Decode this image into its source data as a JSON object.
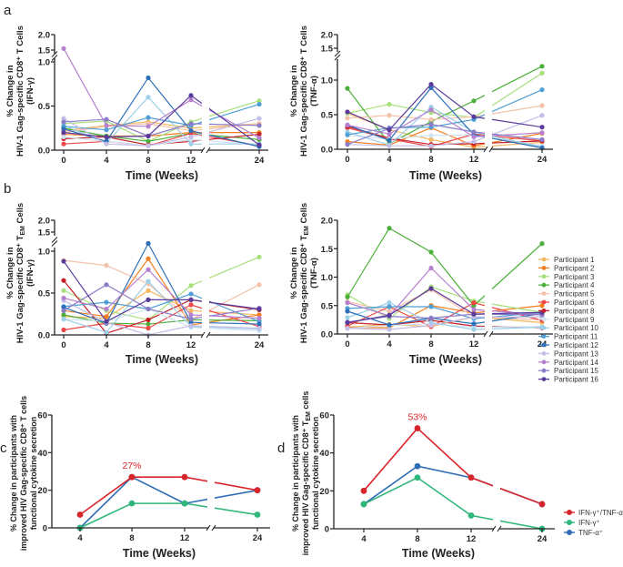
{
  "panel_letters": [
    "a",
    "b",
    "c",
    "d"
  ],
  "legend_participants": [
    {
      "name": "Participant 1",
      "color": "#f5b862"
    },
    {
      "name": "Participant 2",
      "color": "#f57f20"
    },
    {
      "name": "Participant 3",
      "color": "#a8e07c"
    },
    {
      "name": "Participant 4",
      "color": "#4caf3a"
    },
    {
      "name": "Participant 5",
      "color": "#f4c2aa"
    },
    {
      "name": "Participant 6",
      "color": "#ee4545"
    },
    {
      "name": "Participant 8",
      "color": "#c41e28"
    },
    {
      "name": "Participant 9",
      "color": "#cfe3f3"
    },
    {
      "name": "Participant 10",
      "color": "#9dcfe8"
    },
    {
      "name": "Participant 11",
      "color": "#4f9fd6"
    },
    {
      "name": "Participant 12",
      "color": "#2e6fb8"
    },
    {
      "name": "Participant 13",
      "color": "#c4bee6"
    },
    {
      "name": "Participant 14",
      "color": "#b580d0"
    },
    {
      "name": "Participant 15",
      "color": "#8c7cc8"
    },
    {
      "name": "Participant 16",
      "color": "#5a3a9a"
    }
  ],
  "legend_cytokines": [
    {
      "name": "IFN-γ⁺/TNF-α⁺",
      "color": "#d7262b"
    },
    {
      "name": "IFN-γ⁺",
      "color": "#2fb67a"
    },
    {
      "name": "TNF-α⁺",
      "color": "#2f6db5"
    }
  ],
  "chart_data": [
    {
      "type": "line",
      "panel": "a",
      "ylabel_lines": [
        {
          "text": "% Change in"
        },
        {
          "text": "HIV-1 Gag-specific CD8⁺ T Cells"
        },
        {
          "text": "(IFN-γ)"
        }
      ],
      "xlabel": "Time (Weeks)",
      "x": [
        0,
        4,
        8,
        12,
        24
      ],
      "yticks": [
        0,
        0.5,
        1.0,
        1.5,
        2.0
      ],
      "ytick_labels": [
        "0.0",
        "0.5",
        "1.0",
        "1.5",
        "2.0"
      ],
      "ylim": [
        0,
        2.0
      ],
      "y_break": [
        1.0,
        1.5
      ],
      "x_break": [
        12,
        24
      ],
      "series": [
        {
          "name": "Participant 1",
          "color": "#f5b862",
          "values": [
            0.22,
            0.28,
            0.32,
            0.25,
            0.3
          ]
        },
        {
          "name": "Participant 2",
          "color": "#f57f20",
          "values": [
            0.18,
            0.16,
            0.16,
            0.2,
            0.2
          ]
        },
        {
          "name": "Participant 3",
          "color": "#a8e07c",
          "values": [
            0.3,
            0.33,
            0.1,
            0.32,
            0.56
          ]
        },
        {
          "name": "Participant 4",
          "color": "#4caf3a",
          "values": [
            0.25,
            0.16,
            0.1,
            0.19,
            0.12
          ]
        },
        {
          "name": "Participant 5",
          "color": "#f4c2aa",
          "values": [
            0.2,
            0.27,
            0.3,
            0.22,
            0.3
          ]
        },
        {
          "name": "Participant 6",
          "color": "#ee4545",
          "values": [
            0.07,
            0.1,
            0.05,
            0.19,
            0.05
          ]
        },
        {
          "name": "Participant 8",
          "color": "#c41e28",
          "values": [
            0.13,
            0.15,
            0.06,
            0.1,
            0.18
          ]
        },
        {
          "name": "Participant 9",
          "color": "#cfe3f3",
          "values": [
            0.15,
            0.1,
            0.05,
            0.12,
            0.06
          ]
        },
        {
          "name": "Participant 10",
          "color": "#9dcfe8",
          "values": [
            0.28,
            0.08,
            0.6,
            0.07,
            0.07
          ]
        },
        {
          "name": "Participant 11",
          "color": "#4f9fd6",
          "values": [
            0.27,
            0.23,
            0.37,
            0.28,
            0.52
          ]
        },
        {
          "name": "Participant 12",
          "color": "#2e6fb8",
          "values": [
            0.24,
            0.1,
            0.82,
            0.22,
            0.04
          ]
        },
        {
          "name": "Participant 13",
          "color": "#c4bee6",
          "values": [
            0.36,
            0.07,
            0.05,
            0.15,
            0.36
          ]
        },
        {
          "name": "Participant 14",
          "color": "#b580d0",
          "values": [
            1.55,
            0.28,
            0.27,
            0.57,
            0.14
          ]
        },
        {
          "name": "Participant 15",
          "color": "#8c7cc8",
          "values": [
            0.32,
            0.35,
            0.16,
            0.3,
            0.28
          ]
        },
        {
          "name": "Participant 16",
          "color": "#5a3a9a",
          "values": [
            0.2,
            0.15,
            0.16,
            0.62,
            0.06
          ]
        }
      ]
    },
    {
      "type": "line",
      "panel": "a",
      "ylabel_lines": [
        {
          "text": "% Change in"
        },
        {
          "text": "HIV-1 Gag-specific CD8⁺ T Cells"
        },
        {
          "text": "(TNF-α)"
        }
      ],
      "xlabel": "Time (Weeks)",
      "x": [
        0,
        4,
        8,
        12,
        24
      ],
      "yticks": [
        0,
        0.5,
        1.0,
        1.5,
        2.0
      ],
      "ytick_labels": [
        "0.0",
        "0.5",
        "1.0",
        "1.5",
        "2.0"
      ],
      "ylim": [
        0,
        2.0
      ],
      "y_break": [
        1.25,
        1.5
      ],
      "x_break": [
        12,
        24
      ],
      "series": [
        {
          "name": "Participant 1",
          "color": "#f5b862",
          "values": [
            0.52,
            0.28,
            0.14,
            0.03,
            0.1
          ]
        },
        {
          "name": "Participant 2",
          "color": "#f57f20",
          "values": [
            0.11,
            0.06,
            0.31,
            0.05,
            0.23
          ]
        },
        {
          "name": "Participant 3",
          "color": "#a8e07c",
          "values": [
            0.52,
            0.65,
            0.53,
            0.46,
            1.1
          ]
        },
        {
          "name": "Participant 4",
          "color": "#4caf3a",
          "values": [
            0.88,
            0.08,
            0.4,
            0.7,
            1.2
          ]
        },
        {
          "name": "Participant 5",
          "color": "#f4c2aa",
          "values": [
            0.45,
            0.49,
            0.43,
            0.47,
            0.63
          ]
        },
        {
          "name": "Participant 6",
          "color": "#ee4545",
          "values": [
            0.31,
            0.15,
            0.04,
            0.22,
            0.12
          ]
        },
        {
          "name": "Participant 8",
          "color": "#c41e28",
          "values": [
            0.33,
            0.16,
            0.07,
            0.08,
            0.12
          ]
        },
        {
          "name": "Participant 9",
          "color": "#cfe3f3",
          "values": [
            0.2,
            0.15,
            0.2,
            0.21,
            0.05
          ]
        },
        {
          "name": "Participant 10",
          "color": "#9dcfe8",
          "values": [
            0.25,
            0.06,
            0.61,
            0.25,
            0.03
          ]
        },
        {
          "name": "Participant 11",
          "color": "#4f9fd6",
          "values": [
            0.21,
            0.31,
            0.32,
            0.43,
            0.86
          ]
        },
        {
          "name": "Participant 12",
          "color": "#2e6fb8",
          "values": [
            0.35,
            0.13,
            0.89,
            0.21,
            0.02
          ]
        },
        {
          "name": "Participant 13",
          "color": "#c4bee6",
          "values": [
            0.07,
            0.05,
            0.05,
            0.11,
            0.49
          ]
        },
        {
          "name": "Participant 14",
          "color": "#b580d0",
          "values": [
            0.35,
            0.22,
            0.57,
            0.18,
            0.24
          ]
        },
        {
          "name": "Participant 15",
          "color": "#8c7cc8",
          "values": [
            0.07,
            0.3,
            0.36,
            0.25,
            0.14
          ]
        },
        {
          "name": "Participant 16",
          "color": "#5a3a9a",
          "values": [
            0.54,
            0.28,
            0.94,
            0.47,
            0.32
          ]
        }
      ]
    },
    {
      "type": "line",
      "panel": "b",
      "ylabel_lines": [
        {
          "text": "% Change in"
        },
        {
          "text": "HIV-1 Gag-specific CD8⁺ T",
          "sub": "EM",
          "post": " Cells"
        },
        {
          "text": "(IFN-γ)"
        }
      ],
      "xlabel": "Time (Weeks)",
      "x": [
        0,
        4,
        8,
        12,
        24
      ],
      "yticks": [
        0,
        0.5,
        1.0,
        1.5,
        2.0
      ],
      "ytick_labels": [
        "0.0",
        "0.5",
        "1.0",
        "1.5",
        "2.0"
      ],
      "ylim": [
        0,
        2.0
      ],
      "y_break": [
        1.0,
        1.5
      ],
      "x_break": [
        12,
        24
      ],
      "series": [
        {
          "name": "Participant 1",
          "color": "#f5b862",
          "values": [
            0.22,
            0.2,
            0.53,
            0.29,
            0.24
          ]
        },
        {
          "name": "Participant 2",
          "color": "#f57f20",
          "values": [
            0.29,
            0.22,
            0.91,
            0.12,
            0.24
          ]
        },
        {
          "name": "Participant 3",
          "color": "#a8e07c",
          "values": [
            0.53,
            0.29,
            0.18,
            0.59,
            0.93
          ]
        },
        {
          "name": "Participant 4",
          "color": "#4caf3a",
          "values": [
            0.24,
            0.14,
            0.13,
            0.18,
            0.17
          ]
        },
        {
          "name": "Participant 5",
          "color": "#f4c2aa",
          "values": [
            0.89,
            0.83,
            0.61,
            0.18,
            0.6
          ]
        },
        {
          "name": "Participant 6",
          "color": "#ee4545",
          "values": [
            0.06,
            0.14,
            0.08,
            0.36,
            0.1
          ]
        },
        {
          "name": "Participant 8",
          "color": "#c41e28",
          "values": [
            0.65,
            0.02,
            0.18,
            0.42,
            0.3
          ]
        },
        {
          "name": "Participant 9",
          "color": "#cfe3f3",
          "values": [
            0.19,
            0.16,
            0.31,
            0.09,
            0.05
          ]
        },
        {
          "name": "Participant 10",
          "color": "#9dcfe8",
          "values": [
            0.19,
            0.03,
            0.64,
            0.1,
            0.07
          ]
        },
        {
          "name": "Participant 11",
          "color": "#4f9fd6",
          "values": [
            0.34,
            0.39,
            0.31,
            0.49,
            0.16
          ]
        },
        {
          "name": "Participant 12",
          "color": "#2e6fb8",
          "values": [
            0.33,
            0.14,
            1.02,
            0.15,
            0.13
          ]
        },
        {
          "name": "Participant 13",
          "color": "#c4bee6",
          "values": [
            0.41,
            0.15,
            0.0,
            0.11,
            0.08
          ]
        },
        {
          "name": "Participant 14",
          "color": "#b580d0",
          "values": [
            0.44,
            0.31,
            0.78,
            0.24,
            0.2
          ]
        },
        {
          "name": "Participant 15",
          "color": "#8c7cc8",
          "values": [
            0.29,
            0.6,
            0.31,
            0.19,
            0.32
          ]
        },
        {
          "name": "Participant 16",
          "color": "#5a3a9a",
          "values": [
            0.88,
            0.16,
            0.42,
            0.42,
            0.31
          ]
        }
      ]
    },
    {
      "type": "line",
      "panel": "b",
      "ylabel_lines": [
        {
          "text": "% Change in"
        },
        {
          "text": "HIV-1 Gag-specific CD8⁺ T",
          "sub": "EM",
          "post": " Cells"
        },
        {
          "text": "(TNF-α)"
        }
      ],
      "xlabel": "Time (Weeks)",
      "x": [
        0,
        4,
        8,
        12,
        24
      ],
      "yticks": [
        0,
        0.5,
        1.0,
        1.5,
        2.0
      ],
      "ytick_labels": [
        "0.0",
        "0.5",
        "1.0",
        "1.5",
        "2.0"
      ],
      "ylim": [
        0,
        2.0
      ],
      "x_break": [
        12,
        24
      ],
      "series": [
        {
          "name": "Participant 1",
          "color": "#f5b862",
          "values": [
            0.12,
            0.17,
            0.13,
            0.3,
            0.2
          ]
        },
        {
          "name": "Participant 2",
          "color": "#f57f20",
          "values": [
            0.12,
            0.11,
            0.5,
            0.37,
            0.5
          ]
        },
        {
          "name": "Participant 3",
          "color": "#a8e07c",
          "values": [
            0.69,
            0.27,
            0.83,
            0.58,
            0.38
          ]
        },
        {
          "name": "Participant 4",
          "color": "#4caf3a",
          "values": [
            0.65,
            1.86,
            1.44,
            0.5,
            1.59
          ]
        },
        {
          "name": "Participant 5",
          "color": "#f4c2aa",
          "values": [
            0.57,
            0.4,
            0.78,
            0.3,
            0.25
          ]
        },
        {
          "name": "Participant 6",
          "color": "#ee4545",
          "values": [
            0.14,
            0.48,
            0.13,
            0.55,
            0.24
          ]
        },
        {
          "name": "Participant 8",
          "color": "#c41e28",
          "values": [
            0.2,
            0.16,
            0.24,
            0.14,
            0.11
          ]
        },
        {
          "name": "Participant 9",
          "color": "#cfe3f3",
          "values": [
            0.1,
            0.15,
            0.18,
            0.12,
            0.13
          ]
        },
        {
          "name": "Participant 10",
          "color": "#9dcfe8",
          "values": [
            0.29,
            0.55,
            0.2,
            0.08,
            0.12
          ]
        },
        {
          "name": "Participant 11",
          "color": "#4f9fd6",
          "values": [
            0.45,
            0.48,
            0.48,
            0.27,
            0.38
          ]
        },
        {
          "name": "Participant 12",
          "color": "#2e6fb8",
          "values": [
            0.4,
            0.16,
            0.28,
            0.18,
            0.36
          ]
        },
        {
          "name": "Participant 13",
          "color": "#c4bee6",
          "values": [
            0.1,
            0.08,
            0.15,
            0.3,
            0.3
          ]
        },
        {
          "name": "Participant 14",
          "color": "#b580d0",
          "values": [
            0.55,
            0.32,
            1.16,
            0.43,
            0.34
          ]
        },
        {
          "name": "Participant 15",
          "color": "#8c7cc8",
          "values": [
            0.21,
            0.31,
            0.28,
            0.35,
            0.34
          ]
        },
        {
          "name": "Participant 16",
          "color": "#5a3a9a",
          "values": [
            0.2,
            0.33,
            0.8,
            0.35,
            0.38
          ]
        }
      ]
    },
    {
      "type": "line",
      "panel": "c",
      "ylabel_lines": [
        {
          "text": "% Change in participants with"
        },
        {
          "text": "improved HIV Gag-specific CD8⁺ T cells"
        },
        {
          "text": "functional cytokine secretion"
        }
      ],
      "xlabel": "Time (Weeks)",
      "x": [
        4,
        8,
        12,
        24
      ],
      "yticks": [
        0,
        20,
        40,
        60
      ],
      "ytick_labels": [
        "0",
        "20",
        "40",
        "60"
      ],
      "ylim": [
        0,
        60
      ],
      "x_break": [
        12,
        24
      ],
      "annotation": {
        "text": "27%",
        "x": 8,
        "y": 27
      },
      "series": [
        {
          "name": "TNF-α⁺",
          "color": "#2f6db5",
          "values": [
            0,
            27,
            13,
            20
          ]
        },
        {
          "name": "IFN-γ⁺",
          "color": "#2fb67a",
          "values": [
            0,
            13,
            13,
            7
          ]
        },
        {
          "name": "IFN-γ⁺/TNF-α⁺",
          "color": "#d7262b",
          "values": [
            7,
            27,
            27,
            20
          ]
        }
      ]
    },
    {
      "type": "line",
      "panel": "d",
      "ylabel_lines": [
        {
          "text": "% Change in participants with"
        },
        {
          "text": "improved HIV Gag-specific CD8⁺ T",
          "sub": "EM",
          "post": " cells"
        },
        {
          "text": "functional cytokine secretion"
        }
      ],
      "xlabel": "Time (Weeks)",
      "x": [
        4,
        8,
        12,
        24
      ],
      "yticks": [
        0,
        20,
        40,
        60
      ],
      "ytick_labels": [
        "0",
        "20",
        "40",
        "60"
      ],
      "ylim": [
        0,
        60
      ],
      "x_break": [
        12,
        24
      ],
      "annotation": {
        "text": "53%",
        "x": 8,
        "y": 53
      },
      "series": [
        {
          "name": "TNF-α⁺",
          "color": "#2f6db5",
          "values": [
            13,
            33,
            27,
            13
          ]
        },
        {
          "name": "IFN-γ⁺",
          "color": "#2fb67a",
          "values": [
            13,
            27,
            7,
            0
          ]
        },
        {
          "name": "IFN-γ⁺/TNF-α⁺",
          "color": "#d7262b",
          "values": [
            20,
            53,
            27,
            13
          ]
        }
      ]
    }
  ]
}
